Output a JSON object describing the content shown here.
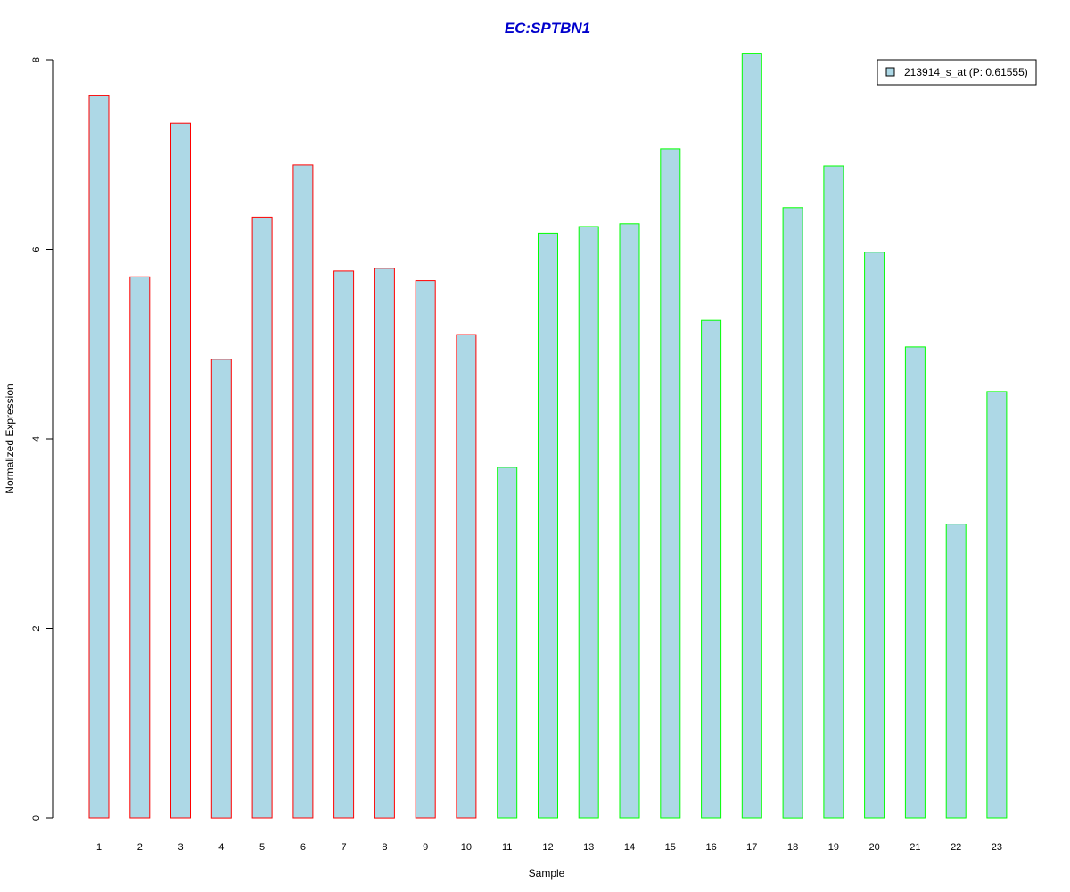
{
  "chart_data": {
    "type": "bar",
    "title": "EC:SPTBN1",
    "xlabel": "Sample",
    "ylabel": "Normalized Expression",
    "categories": [
      "1",
      "2",
      "3",
      "4",
      "5",
      "6",
      "7",
      "8",
      "9",
      "10",
      "11",
      "12",
      "13",
      "14",
      "15",
      "16",
      "17",
      "18",
      "19",
      "20",
      "21",
      "22",
      "23"
    ],
    "series": [
      {
        "name": "213914_s_at (P: 0.61555)",
        "values": [
          7.62,
          5.71,
          7.33,
          4.84,
          6.34,
          6.89,
          5.77,
          5.8,
          5.67,
          5.1,
          3.7,
          6.17,
          6.24,
          6.27,
          7.06,
          5.25,
          8.07,
          6.44,
          6.88,
          5.97,
          4.97,
          3.1,
          4.5
        ]
      }
    ],
    "group_outline_colors": [
      "#ff0000",
      "#ff0000",
      "#ff0000",
      "#ff0000",
      "#ff0000",
      "#ff0000",
      "#ff0000",
      "#ff0000",
      "#ff0000",
      "#ff0000",
      "#00ff00",
      "#00ff00",
      "#00ff00",
      "#00ff00",
      "#00ff00",
      "#00ff00",
      "#00ff00",
      "#00ff00",
      "#00ff00",
      "#00ff00",
      "#00ff00",
      "#00ff00",
      "#00ff00"
    ],
    "ylim": [
      0,
      8.1
    ],
    "yticks": [
      0,
      2,
      4,
      6,
      8
    ],
    "grid": false,
    "legend_position": "top-right",
    "colors": {
      "bar_fill": "#add8e6",
      "title": "#0000cc",
      "axis": "#000000"
    }
  }
}
